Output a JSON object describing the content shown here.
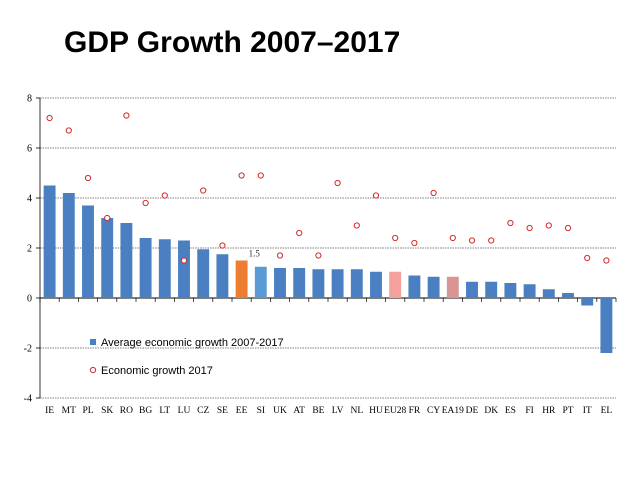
{
  "title": "GDP Growth 2007–2017",
  "chart_data": {
    "type": "bar",
    "title": "GDP Growth 2007–2017",
    "ylim": [
      -4,
      8
    ],
    "yticks": [
      -4,
      -2,
      0,
      2,
      4,
      6,
      8
    ],
    "categories": [
      "IE",
      "MT",
      "PL",
      "SK",
      "RO",
      "BG",
      "LT",
      "LU",
      "CZ",
      "SE",
      "EE",
      "SI",
      "UK",
      "AT",
      "BE",
      "LV",
      "NL",
      "HU",
      "EU28",
      "FR",
      "CY",
      "EA19",
      "DE",
      "DK",
      "ES",
      "FI",
      "HR",
      "PT",
      "IT",
      "EL"
    ],
    "series": [
      {
        "name": "Average economic growth 2007-2017",
        "kind": "bar",
        "values": [
          4.5,
          4.2,
          3.7,
          3.2,
          3.0,
          2.4,
          2.35,
          2.3,
          1.95,
          1.75,
          1.5,
          1.25,
          1.2,
          1.2,
          1.15,
          1.15,
          1.15,
          1.05,
          1.05,
          0.9,
          0.85,
          0.85,
          0.65,
          0.65,
          0.6,
          0.55,
          0.35,
          0.2,
          -0.3,
          -2.2
        ],
        "colors": [
          "#4a7fc1",
          "#4a7fc1",
          "#4a7fc1",
          "#4a7fc1",
          "#4a7fc1",
          "#4a7fc1",
          "#4a7fc1",
          "#4a7fc1",
          "#4a7fc1",
          "#4a7fc1",
          "#ed7d31",
          "#5b9bd5",
          "#4a7fc1",
          "#4a7fc1",
          "#4a7fc1",
          "#4a7fc1",
          "#4a7fc1",
          "#4a7fc1",
          "#f4a09c",
          "#4a7fc1",
          "#4a7fc1",
          "#d99594",
          "#4a7fc1",
          "#4a7fc1",
          "#4a7fc1",
          "#4a7fc1",
          "#4a7fc1",
          "#4a7fc1",
          "#4a7fc1",
          "#4a7fc1"
        ]
      },
      {
        "name": "Economic growth 2017",
        "kind": "marker",
        "values": [
          7.2,
          6.7,
          4.8,
          3.2,
          7.3,
          3.8,
          4.1,
          1.5,
          4.3,
          2.1,
          4.9,
          4.9,
          1.7,
          2.6,
          1.7,
          4.6,
          2.9,
          4.1,
          2.4,
          2.2,
          4.2,
          2.4,
          2.3,
          2.3,
          3.0,
          2.8,
          2.9,
          2.8,
          1.6,
          1.5
        ],
        "color": "#d42a2a"
      }
    ],
    "annotations": [
      {
        "category": "EE",
        "text": "1.5"
      }
    ],
    "legend": [
      {
        "label": "Average economic growth 2007-2017",
        "marker": "square",
        "color": "#4a7fc1"
      },
      {
        "label": "Economic growth 2017",
        "marker": "circle",
        "color": "#d42a2a"
      }
    ],
    "legend_position": "bottom-left"
  }
}
